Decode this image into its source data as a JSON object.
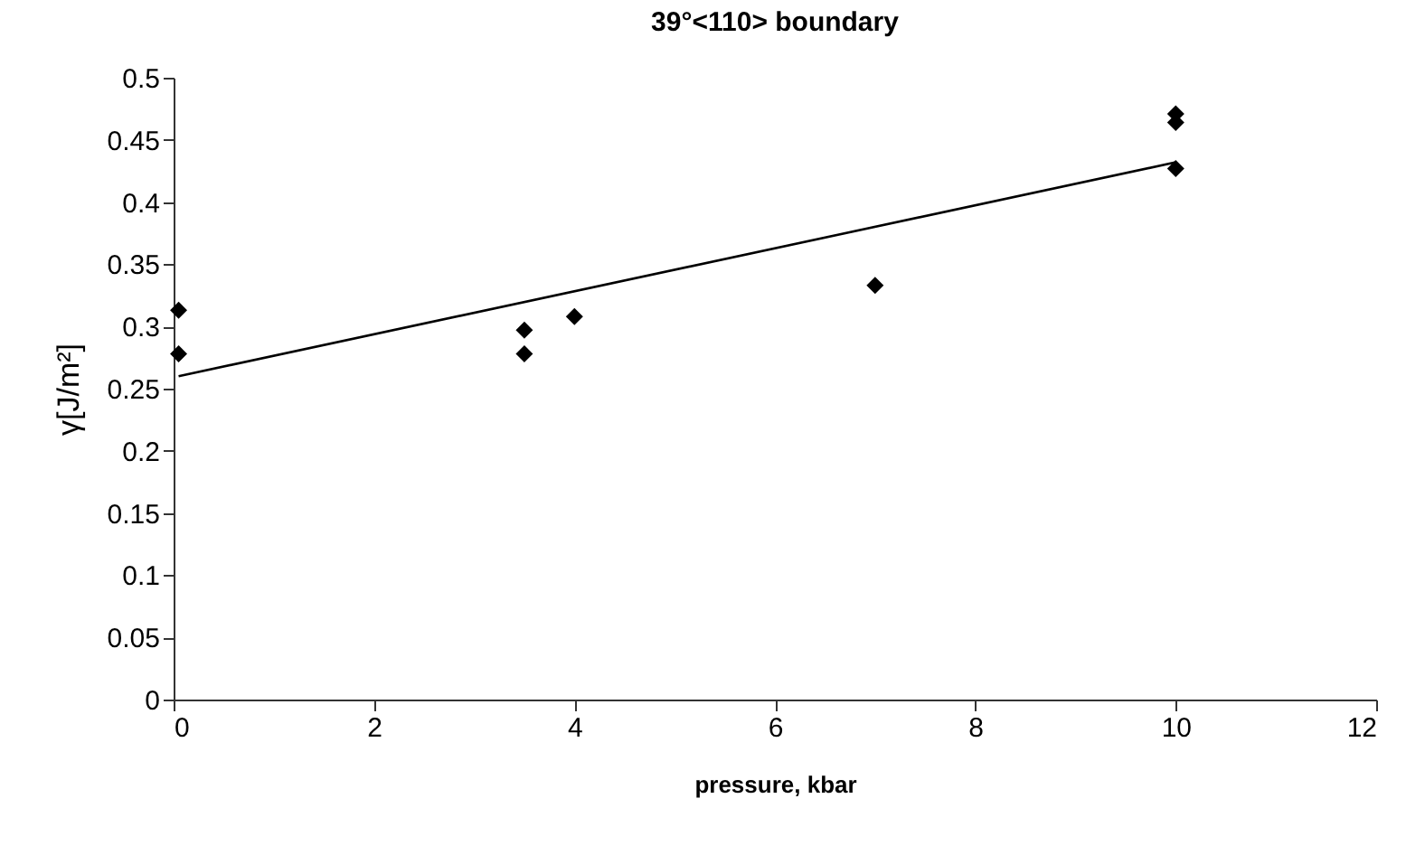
{
  "chart_data": {
    "type": "scatter",
    "title": "39°<110> boundary",
    "xlabel": "pressure, kbar",
    "ylabel": "γ[J/m²]",
    "series": [
      {
        "type": "scatter",
        "color": "#000000",
        "marker": "diamond",
        "x": [
          0.05,
          0.05,
          3.5,
          3.5,
          4,
          7,
          10,
          10,
          10
        ],
        "values": [
          0.313,
          0.278,
          0.297,
          0.278,
          0.308,
          0.333,
          0.471,
          0.464,
          0.427
        ]
      },
      {
        "type": "line",
        "color": "#000000",
        "marker": "none",
        "line_style": "solid",
        "x": [
          0.05,
          10
        ],
        "values": [
          0.26,
          0.432
        ]
      }
    ],
    "xlim": [
      0,
      12
    ],
    "xticks": [
      0,
      2,
      4,
      6,
      8,
      10,
      12
    ],
    "ylim": [
      0,
      0.5
    ],
    "yticks": [
      0,
      0.05,
      0.1,
      0.15,
      0.2,
      0.25,
      0.3,
      0.35,
      0.4,
      0.45,
      0.5
    ],
    "grid": false
  }
}
